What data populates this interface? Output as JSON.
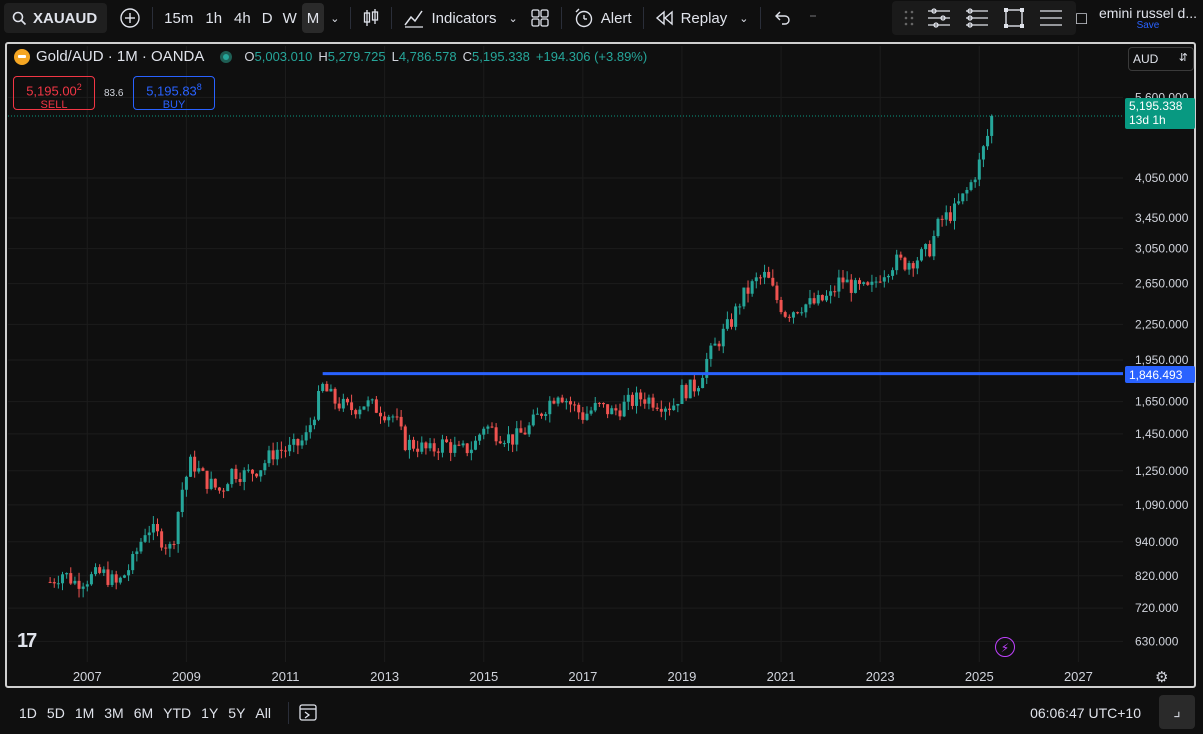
{
  "toolbar": {
    "symbol": "XAUAUD",
    "timeframes": [
      "15m",
      "1h",
      "4h",
      "D",
      "W",
      "M"
    ],
    "active_timeframe": "M",
    "indicators_label": "Indicators",
    "alert_label": "Alert",
    "replay_label": "Replay",
    "layout_name": "emini russel d...",
    "save_label": "Save"
  },
  "legend": {
    "title": "Gold/AUD · 1M · OANDA",
    "open_label": "O",
    "open": "5,003.010",
    "high_label": "H",
    "high": "5,279.725",
    "low_label": "L",
    "low": "4,786.578",
    "close_label": "C",
    "close": "5,195.338",
    "change": "+194.306 (+3.89%)"
  },
  "trade": {
    "sell_price": "5,195.00",
    "sell_price_sup": "2",
    "sell_label": "SELL",
    "spread": "83.6",
    "buy_price": "5,195.83",
    "buy_price_sup": "8",
    "buy_label": "BUY"
  },
  "price_scale": {
    "currency": "AUD",
    "last_price": "5,195.338",
    "countdown": "13d 1h",
    "line_price": "1,846.493"
  },
  "colors": {
    "up": "#26a69a",
    "down": "#ef5350",
    "hline": "#2962ff",
    "last": "#089981"
  },
  "chart_data": {
    "type": "candlestick",
    "scale": "log",
    "y_ticks": [
      5600,
      4050,
      3450,
      3050,
      2650,
      2250,
      1950,
      1650,
      1450,
      1250,
      1090,
      940,
      820,
      720,
      630
    ],
    "y_tick_labels": [
      "5,600.000",
      "4,050.000",
      "3,450.000",
      "3,050.000",
      "2,650.000",
      "2,250.000",
      "1,950.000",
      "1,650.000",
      "1,450.000",
      "1,250.000",
      "1,090.000",
      "940.000",
      "820.000",
      "720.000",
      "630.000"
    ],
    "x_tick_labels": [
      "2007",
      "2009",
      "2011",
      "2013",
      "2015",
      "2017",
      "2019",
      "2021",
      "2023",
      "2025",
      "2027"
    ],
    "x_ticks": [
      2007,
      2009,
      2011,
      2013,
      2015,
      2017,
      2019,
      2021,
      2023,
      2025,
      2027
    ],
    "ylim": [
      580,
      6200
    ],
    "xlim": [
      2005.4,
      2027.9
    ],
    "horizontal_line": {
      "value": 1846.493,
      "from_year": 2011.75
    },
    "last_close": 5195.338,
    "series_path": [
      [
        2006.25,
        800
      ],
      [
        2006.5,
        830
      ],
      [
        2006.75,
        800
      ],
      [
        2007.0,
        810
      ],
      [
        2007.3,
        830
      ],
      [
        2007.6,
        790
      ],
      [
        2007.9,
        860
      ],
      [
        2008.2,
        1000
      ],
      [
        2008.5,
        950
      ],
      [
        2008.7,
        910
      ],
      [
        2008.9,
        1150
      ],
      [
        2009.1,
        1300
      ],
      [
        2009.4,
        1200
      ],
      [
        2009.7,
        1150
      ],
      [
        2009.9,
        1250
      ],
      [
        2010.2,
        1230
      ],
      [
        2010.5,
        1270
      ],
      [
        2010.8,
        1360
      ],
      [
        2011.1,
        1360
      ],
      [
        2011.4,
        1420
      ],
      [
        2011.6,
        1600
      ],
      [
        2011.75,
        1750
      ],
      [
        2012.0,
        1650
      ],
      [
        2012.3,
        1600
      ],
      [
        2012.6,
        1640
      ],
      [
        2012.9,
        1600
      ],
      [
        2013.2,
        1550
      ],
      [
        2013.4,
        1400
      ],
      [
        2013.7,
        1380
      ],
      [
        2013.9,
        1350
      ],
      [
        2014.2,
        1400
      ],
      [
        2014.5,
        1350
      ],
      [
        2014.8,
        1380
      ],
      [
        2015.0,
        1500
      ],
      [
        2015.3,
        1450
      ],
      [
        2015.6,
        1420
      ],
      [
        2015.9,
        1480
      ],
      [
        2016.2,
        1600
      ],
      [
        2016.5,
        1720
      ],
      [
        2016.8,
        1620
      ],
      [
        2017.0,
        1560
      ],
      [
        2017.3,
        1620
      ],
      [
        2017.6,
        1580
      ],
      [
        2017.9,
        1640
      ],
      [
        2018.2,
        1680
      ],
      [
        2018.5,
        1650
      ],
      [
        2018.8,
        1620
      ],
      [
        2019.0,
        1720
      ],
      [
        2019.3,
        1760
      ],
      [
        2019.5,
        1950
      ],
      [
        2019.8,
        2150
      ],
      [
        2020.0,
        2280
      ],
      [
        2020.2,
        2500
      ],
      [
        2020.5,
        2680
      ],
      [
        2020.7,
        2740
      ],
      [
        2020.9,
        2500
      ],
      [
        2021.1,
        2350
      ],
      [
        2021.4,
        2430
      ],
      [
        2021.7,
        2450
      ],
      [
        2022.0,
        2520
      ],
      [
        2022.2,
        2700
      ],
      [
        2022.5,
        2600
      ],
      [
        2022.8,
        2580
      ],
      [
        2023.0,
        2750
      ],
      [
        2023.3,
        2900
      ],
      [
        2023.5,
        2880
      ],
      [
        2023.8,
        2950
      ],
      [
        2024.0,
        3050
      ],
      [
        2024.2,
        3400
      ],
      [
        2024.5,
        3550
      ],
      [
        2024.8,
        3900
      ],
      [
        2025.0,
        4300
      ],
      [
        2025.2,
        4900
      ],
      [
        2025.3,
        5195
      ]
    ]
  },
  "bottom": {
    "ranges": [
      "1D",
      "5D",
      "1M",
      "3M",
      "6M",
      "YTD",
      "1Y",
      "5Y",
      "All"
    ],
    "clock": "06:06:47 UTC+10"
  }
}
